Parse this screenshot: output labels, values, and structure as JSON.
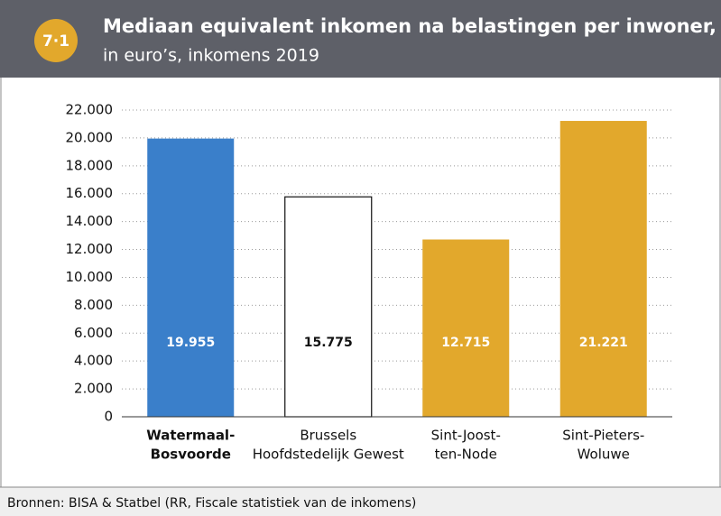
{
  "chart_data": {
    "type": "bar",
    "badge": "7·1",
    "title": "Mediaan equivalent inkomen na belastingen per inwoner,",
    "subtitle": "in euro’s, inkomens 2019",
    "categories": [
      [
        "Watermaal-",
        "Bosvoorde"
      ],
      [
        "Brussels",
        "Hoofdstedelijk Gewest"
      ],
      [
        "Sint-Joost-",
        "ten-Node"
      ],
      [
        "Sint-Pieters-",
        "Woluwe"
      ]
    ],
    "values": [
      19955,
      15775,
      12715,
      21221
    ],
    "value_labels": [
      "19.955",
      "15.775",
      "12.715",
      "21.221"
    ],
    "colors": [
      "#3a7fca",
      "#ffffff",
      "#e2a82c",
      "#e2a82c"
    ],
    "ylim": [
      0,
      22000
    ],
    "yticks": [
      0,
      {
        "value": 2000,
        "label": "2.000"
      },
      {
        "value": 4000,
        "label": "4.000"
      },
      {
        "value": 6000,
        "label": "6.000"
      },
      {
        "value": 8000,
        "label": "8.000"
      },
      {
        "value": 10000,
        "label": "10.000"
      },
      {
        "value": 12000,
        "label": "12.000"
      },
      {
        "value": 14000,
        "label": "14.000"
      },
      {
        "value": 16000,
        "label": "16.000"
      },
      {
        "value": 18000,
        "label": "18.000"
      },
      {
        "value": 20000,
        "label": "20.000"
      },
      {
        "value": 22000,
        "label": "22.000"
      }
    ],
    "grid": true,
    "source": "Bronnen: BISA & Statbel (RR, Fiscale statistiek van de inkomens)"
  }
}
